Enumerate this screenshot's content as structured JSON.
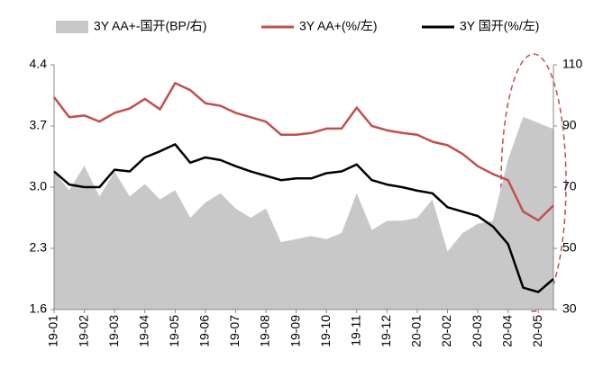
{
  "chart_data": {
    "type": "line",
    "categories": [
      "19-01",
      null,
      "19-02",
      null,
      "19-03",
      null,
      "19-04",
      null,
      "19-05",
      null,
      "19-06",
      null,
      "19-07",
      null,
      "19-08",
      null,
      "19-09",
      null,
      "19-10",
      null,
      "19-11",
      null,
      "19-12",
      null,
      "20-01",
      null,
      "20-02",
      null,
      "20-03",
      null,
      "20-04",
      null,
      "20-05",
      null
    ],
    "series": [
      {
        "name": "3Y AA+-国开(BP/右)",
        "type": "area",
        "axis": "y2",
        "color": "#c8c8c8",
        "values": [
          75,
          69,
          77,
          67,
          75,
          67,
          71,
          66,
          69,
          60,
          65,
          68,
          63,
          60,
          63,
          52,
          53,
          54,
          53,
          55,
          68,
          56,
          59,
          59,
          60,
          66,
          49,
          55,
          58,
          59,
          79,
          93,
          91,
          89
        ]
      },
      {
        "name": "3Y AA+(%/左)",
        "type": "line",
        "color": "#c0504d",
        "values": [
          4.03,
          3.8,
          3.82,
          3.75,
          3.85,
          3.9,
          4.01,
          3.89,
          4.19,
          4.11,
          3.96,
          3.93,
          3.85,
          3.8,
          3.75,
          3.6,
          3.6,
          3.62,
          3.67,
          3.67,
          3.91,
          3.7,
          3.65,
          3.62,
          3.6,
          3.52,
          3.48,
          3.38,
          3.24,
          3.15,
          3.08,
          2.72,
          2.62,
          2.79
        ]
      },
      {
        "name": "3Y 国开(%/左)",
        "type": "line",
        "color": "#000000",
        "values": [
          3.18,
          3.03,
          3.0,
          3.0,
          3.2,
          3.18,
          3.34,
          3.41,
          3.49,
          3.28,
          3.34,
          3.31,
          3.24,
          3.18,
          3.13,
          3.08,
          3.1,
          3.1,
          3.16,
          3.18,
          3.26,
          3.08,
          3.03,
          3.0,
          2.96,
          2.93,
          2.77,
          2.72,
          2.67,
          2.55,
          2.35,
          1.85,
          1.8,
          1.95
        ]
      }
    ],
    "ylim": [
      1.6,
      4.4
    ],
    "yticks": [
      1.6,
      2.3,
      {
        "value": 3.0,
        "label": "3.0"
      },
      3.7,
      4.4
    ],
    "y2lim": [
      30,
      110
    ],
    "y2ticks": [
      30,
      50,
      70,
      90,
      110
    ]
  }
}
